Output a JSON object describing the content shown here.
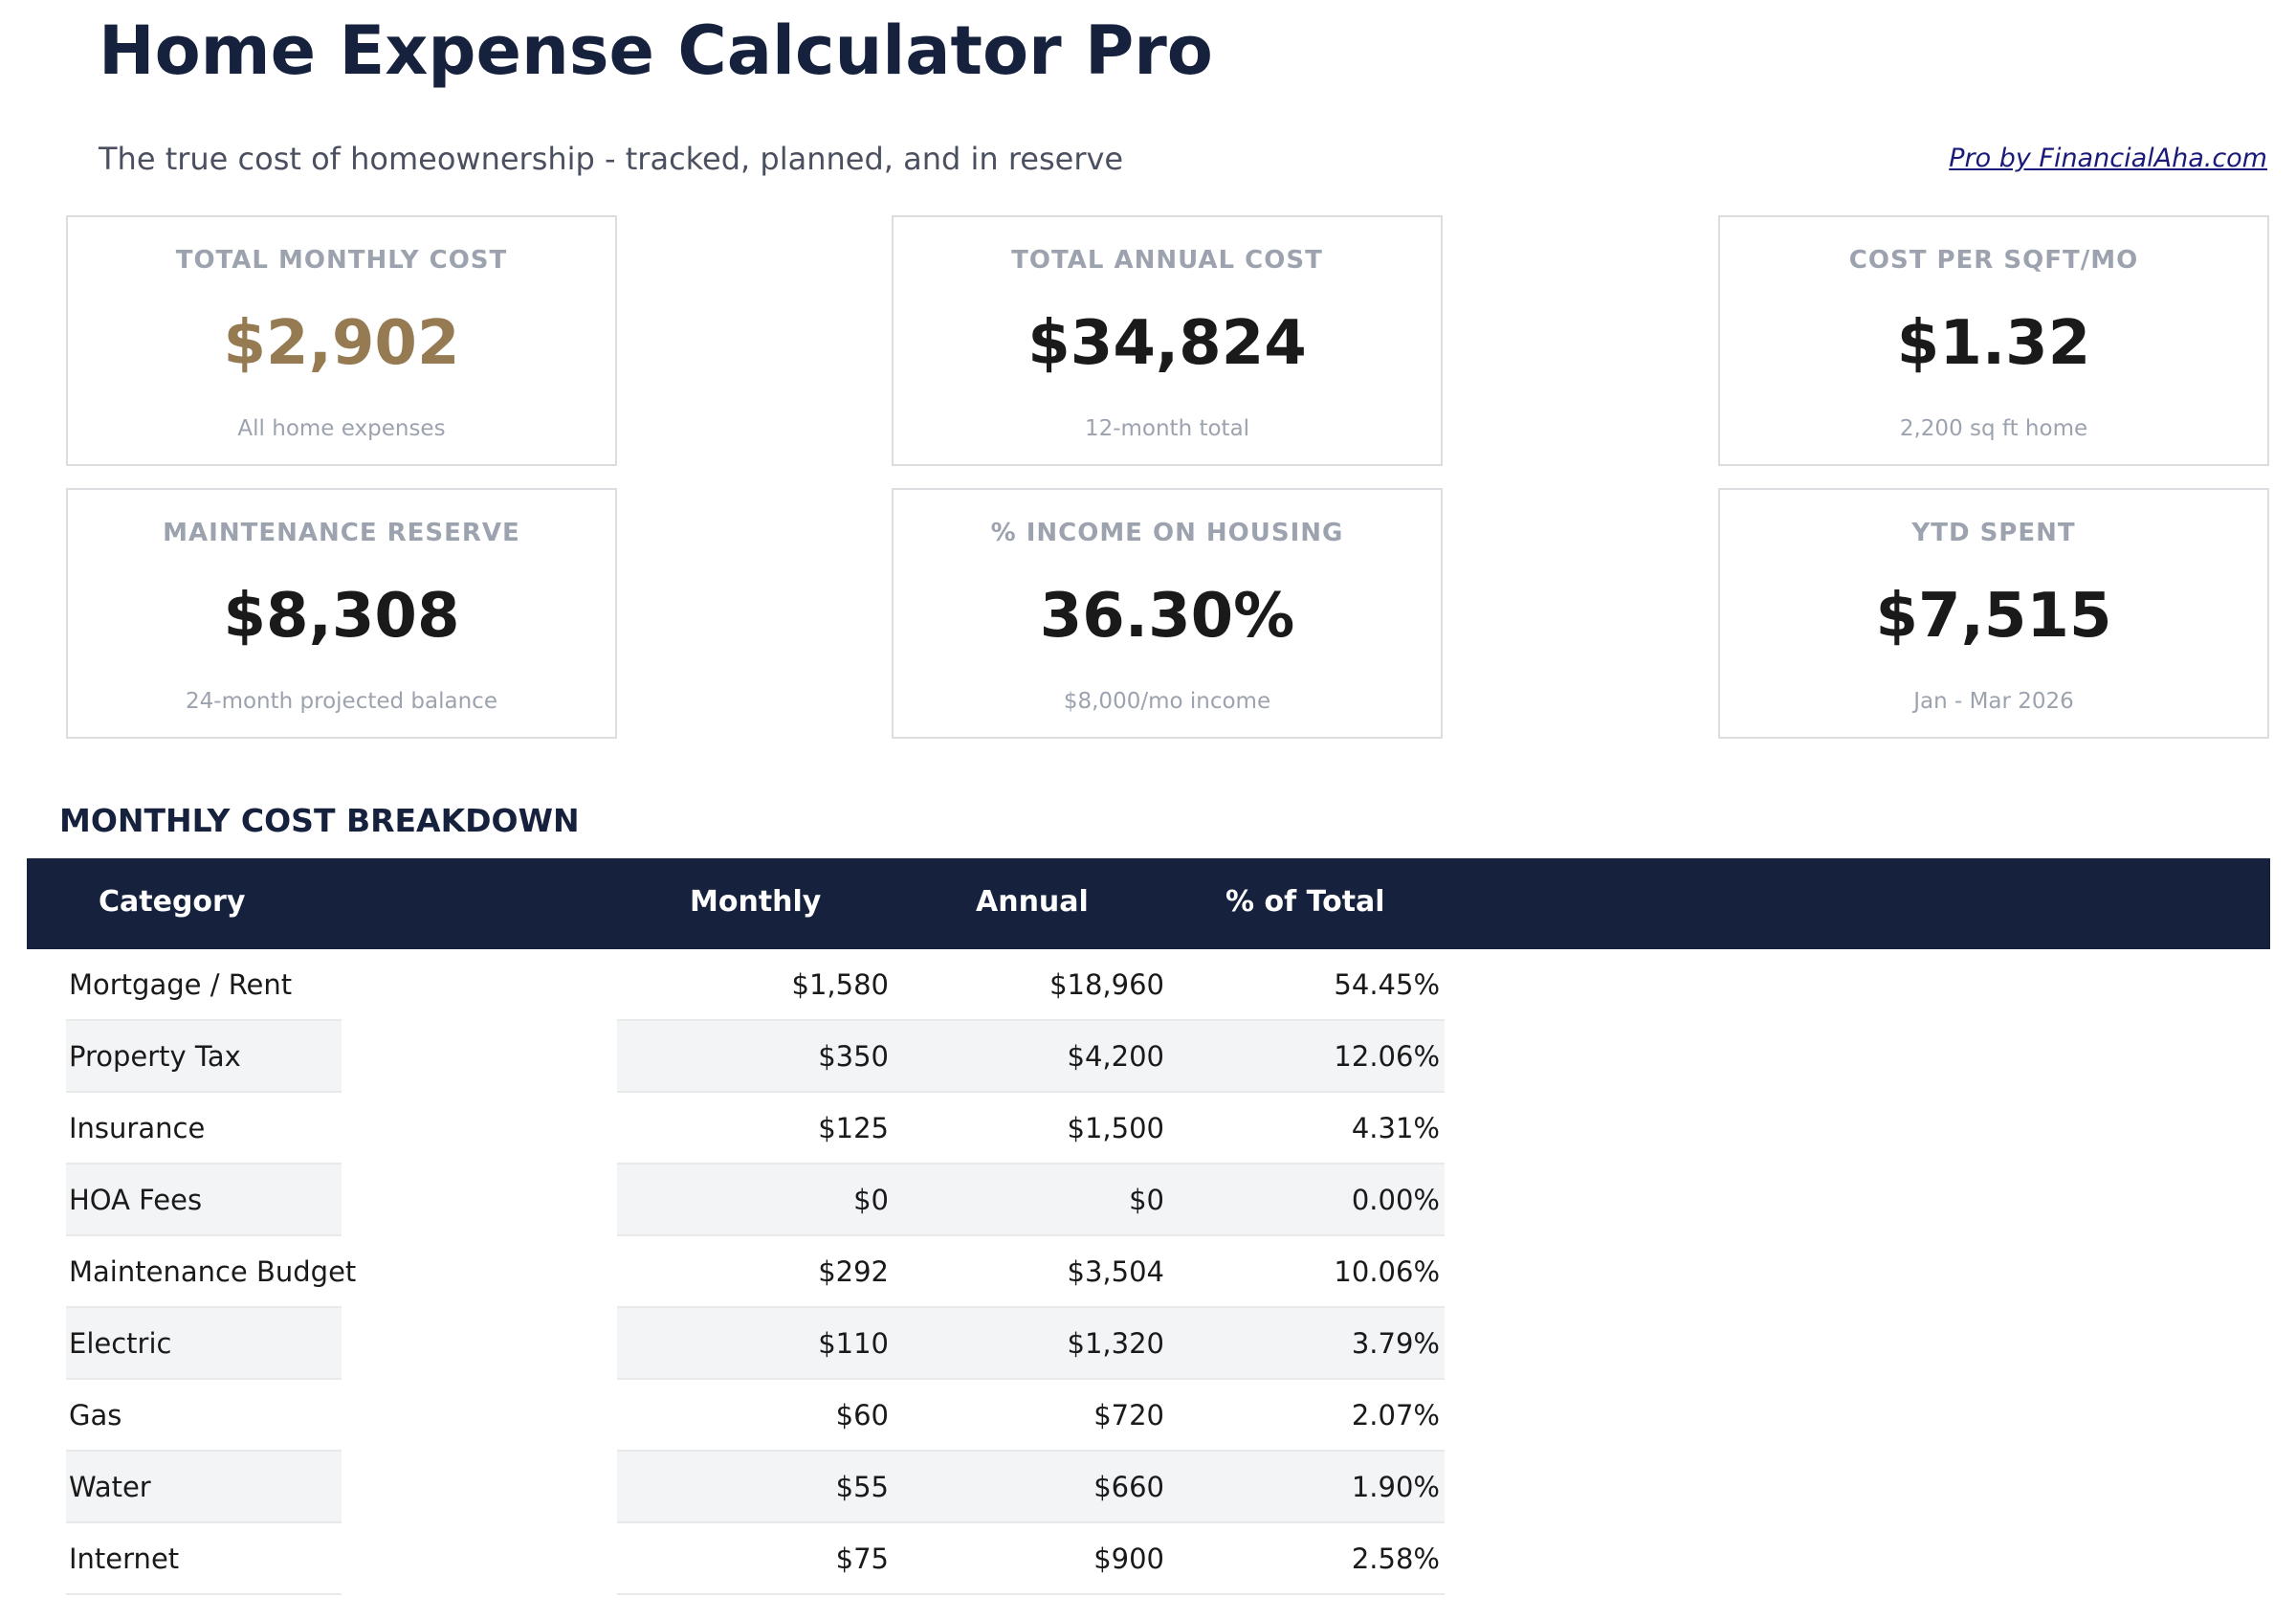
{
  "header": {
    "title": "Home Expense Calculator Pro",
    "subtitle": "The true cost of homeownership - tracked, planned, and in reserve",
    "link": "Pro by FinancialAha.com"
  },
  "cards": [
    {
      "label": "TOTAL MONTHLY COST",
      "value": "$2,902",
      "note": "All home expenses"
    },
    {
      "label": "TOTAL ANNUAL COST",
      "value": "$34,824",
      "note": "12-month total"
    },
    {
      "label": "COST PER SQFT/MO",
      "value": "$1.32",
      "note": "2,200 sq ft home"
    },
    {
      "label": "MAINTENANCE RESERVE",
      "value": "$8,308",
      "note": "24-month projected balance"
    },
    {
      "label": "% INCOME ON HOUSING",
      "value": "36.30%",
      "note": "$8,000/mo income"
    },
    {
      "label": "YTD SPENT",
      "value": "$7,515",
      "note": "Jan - Mar 2026"
    }
  ],
  "section_title": "MONTHLY COST BREAKDOWN",
  "table": {
    "columns": [
      "Category",
      "Monthly",
      "Annual",
      "% of Total"
    ],
    "rows": [
      [
        "Mortgage / Rent",
        "$1,580",
        "$18,960",
        "54.45%"
      ],
      [
        "Property Tax",
        "$350",
        "$4,200",
        "12.06%"
      ],
      [
        "Insurance",
        "$125",
        "$1,500",
        "4.31%"
      ],
      [
        "HOA Fees",
        "$0",
        "$0",
        "0.00%"
      ],
      [
        "Maintenance Budget",
        "$292",
        "$3,504",
        "10.06%"
      ],
      [
        "Electric",
        "$110",
        "$1,320",
        "3.79%"
      ],
      [
        "Gas",
        "$60",
        "$720",
        "2.07%"
      ],
      [
        "Water",
        "$55",
        "$660",
        "1.90%"
      ],
      [
        "Internet",
        "$75",
        "$900",
        "2.58%"
      ]
    ]
  }
}
